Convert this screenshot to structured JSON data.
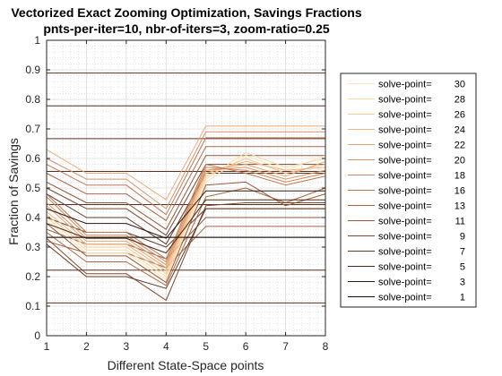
{
  "chart_data": {
    "type": "line",
    "title": "Vectorized Exact Zooming Optimization, Savings Fractions",
    "subtitle": "pnts-per-iter=10, nbr-of-iters=3, zoom-ratio=0.25",
    "xlabel": "Different State-Space points",
    "ylabel": "Fraction of Savings",
    "x": [
      1,
      2,
      3,
      4,
      5,
      6,
      7,
      8
    ],
    "xlim": [
      1,
      8
    ],
    "ylim": [
      0,
      1
    ],
    "xticks": [
      "1",
      "2",
      "3",
      "4",
      "5",
      "6",
      "7",
      "8"
    ],
    "yticks": [
      "0",
      "0.1",
      "0.2",
      "0.3",
      "0.4",
      "0.5",
      "0.6",
      "0.7",
      "0.8",
      "0.9",
      "1"
    ],
    "grid": "minor",
    "legend_position": "right",
    "reference_levels": [
      0.111,
      0.222,
      0.333,
      0.444,
      0.556,
      0.667,
      0.778,
      0.889
    ],
    "series": [
      {
        "name": "solve-point=   30",
        "color": "#fde3b8",
        "values": [
          0.39,
          0.28,
          0.28,
          0.19,
          0.52,
          0.61,
          0.56,
          0.61
        ]
      },
      {
        "name": "solve-point=   28",
        "color": "#fcd8a4",
        "values": [
          0.4,
          0.29,
          0.29,
          0.2,
          0.53,
          0.62,
          0.57,
          0.6
        ]
      },
      {
        "name": "solve-point=   26",
        "color": "#f8c890",
        "values": [
          0.41,
          0.3,
          0.3,
          0.21,
          0.54,
          0.6,
          0.55,
          0.58
        ]
      },
      {
        "name": "solve-point=   24",
        "color": "#f2b580",
        "values": [
          0.42,
          0.31,
          0.31,
          0.22,
          0.55,
          0.59,
          0.56,
          0.57
        ]
      },
      {
        "name": "solve-point=   22",
        "color": "#e9a571",
        "values": [
          0.44,
          0.32,
          0.32,
          0.23,
          0.56,
          0.58,
          0.54,
          0.59
        ]
      },
      {
        "name": "solve-point=   20",
        "color": "#dd9565",
        "values": [
          0.45,
          0.33,
          0.33,
          0.24,
          0.56,
          0.57,
          0.53,
          0.56
        ]
      },
      {
        "name": "solve-point=   18",
        "color": "#d08558",
        "values": [
          0.47,
          0.34,
          0.34,
          0.25,
          0.57,
          0.56,
          0.52,
          0.55
        ]
      },
      {
        "name": "solve-point=   16",
        "color": "#c0774c",
        "values": [
          0.48,
          0.35,
          0.35,
          0.26,
          0.58,
          0.55,
          0.51,
          0.54
        ]
      },
      {
        "name": "solve-point=   13",
        "color": "#ac6740",
        "values": [
          0.35,
          0.25,
          0.25,
          0.17,
          0.47,
          0.5,
          0.45,
          0.5
        ]
      },
      {
        "name": "solve-point=   11",
        "color": "#995a38",
        "values": [
          0.38,
          0.27,
          0.27,
          0.18,
          0.51,
          0.52,
          0.44,
          0.48
        ]
      },
      {
        "name": "solve-point=    9",
        "color": "#7f4a2e",
        "values": [
          0.33,
          0.21,
          0.21,
          0.12,
          0.44,
          0.45,
          0.45,
          0.45
        ]
      },
      {
        "name": "solve-point=    7",
        "color": "#643a24",
        "values": [
          0.31,
          0.2,
          0.2,
          0.16,
          0.43,
          0.43,
          0.43,
          0.43
        ]
      },
      {
        "name": "solve-point=    5",
        "color": "#4a2b1b",
        "values": [
          0.38,
          0.33,
          0.33,
          0.28,
          0.46,
          0.46,
          0.46,
          0.46
        ]
      },
      {
        "name": "solve-point=    3",
        "color": "#2e1b11",
        "values": [
          0.43,
          0.38,
          0.38,
          0.33,
          0.49,
          0.49,
          0.49,
          0.49
        ]
      },
      {
        "name": "solve-point=    1",
        "color": "#141009",
        "values": [
          0.333,
          0.333,
          0.333,
          0.333,
          0.333,
          0.333,
          0.333,
          0.333
        ]
      }
    ],
    "extra_envelopes": [
      {
        "color": "#f0a878",
        "values": [
          0.63,
          0.55,
          0.55,
          0.46,
          0.71,
          0.71,
          0.71,
          0.71
        ]
      },
      {
        "color": "#d89068",
        "values": [
          0.6,
          0.53,
          0.53,
          0.43,
          0.69,
          0.69,
          0.69,
          0.69
        ]
      },
      {
        "color": "#c07858",
        "values": [
          0.58,
          0.51,
          0.51,
          0.41,
          0.67,
          0.67,
          0.67,
          0.67
        ]
      },
      {
        "color": "#a86848",
        "values": [
          0.55,
          0.48,
          0.48,
          0.39,
          0.64,
          0.64,
          0.64,
          0.64
        ]
      },
      {
        "color": "#905838",
        "values": [
          0.52,
          0.45,
          0.45,
          0.36,
          0.61,
          0.61,
          0.61,
          0.61
        ]
      },
      {
        "color": "#784830",
        "values": [
          0.5,
          0.43,
          0.43,
          0.34,
          0.58,
          0.58,
          0.58,
          0.58
        ]
      },
      {
        "color": "#603828",
        "values": [
          0.48,
          0.4,
          0.4,
          0.31,
          0.55,
          0.55,
          0.55,
          0.55
        ]
      },
      {
        "color": "#6a4030",
        "values": [
          0.4,
          0.35,
          0.35,
          0.3,
          0.43,
          0.43,
          0.43,
          0.43
        ]
      },
      {
        "color": "#8a5a40",
        "values": [
          0.36,
          0.31,
          0.31,
          0.26,
          0.4,
          0.4,
          0.4,
          0.4
        ]
      },
      {
        "color": "#a06848",
        "values": [
          0.32,
          0.28,
          0.28,
          0.23,
          0.37,
          0.37,
          0.37,
          0.37
        ]
      }
    ]
  }
}
